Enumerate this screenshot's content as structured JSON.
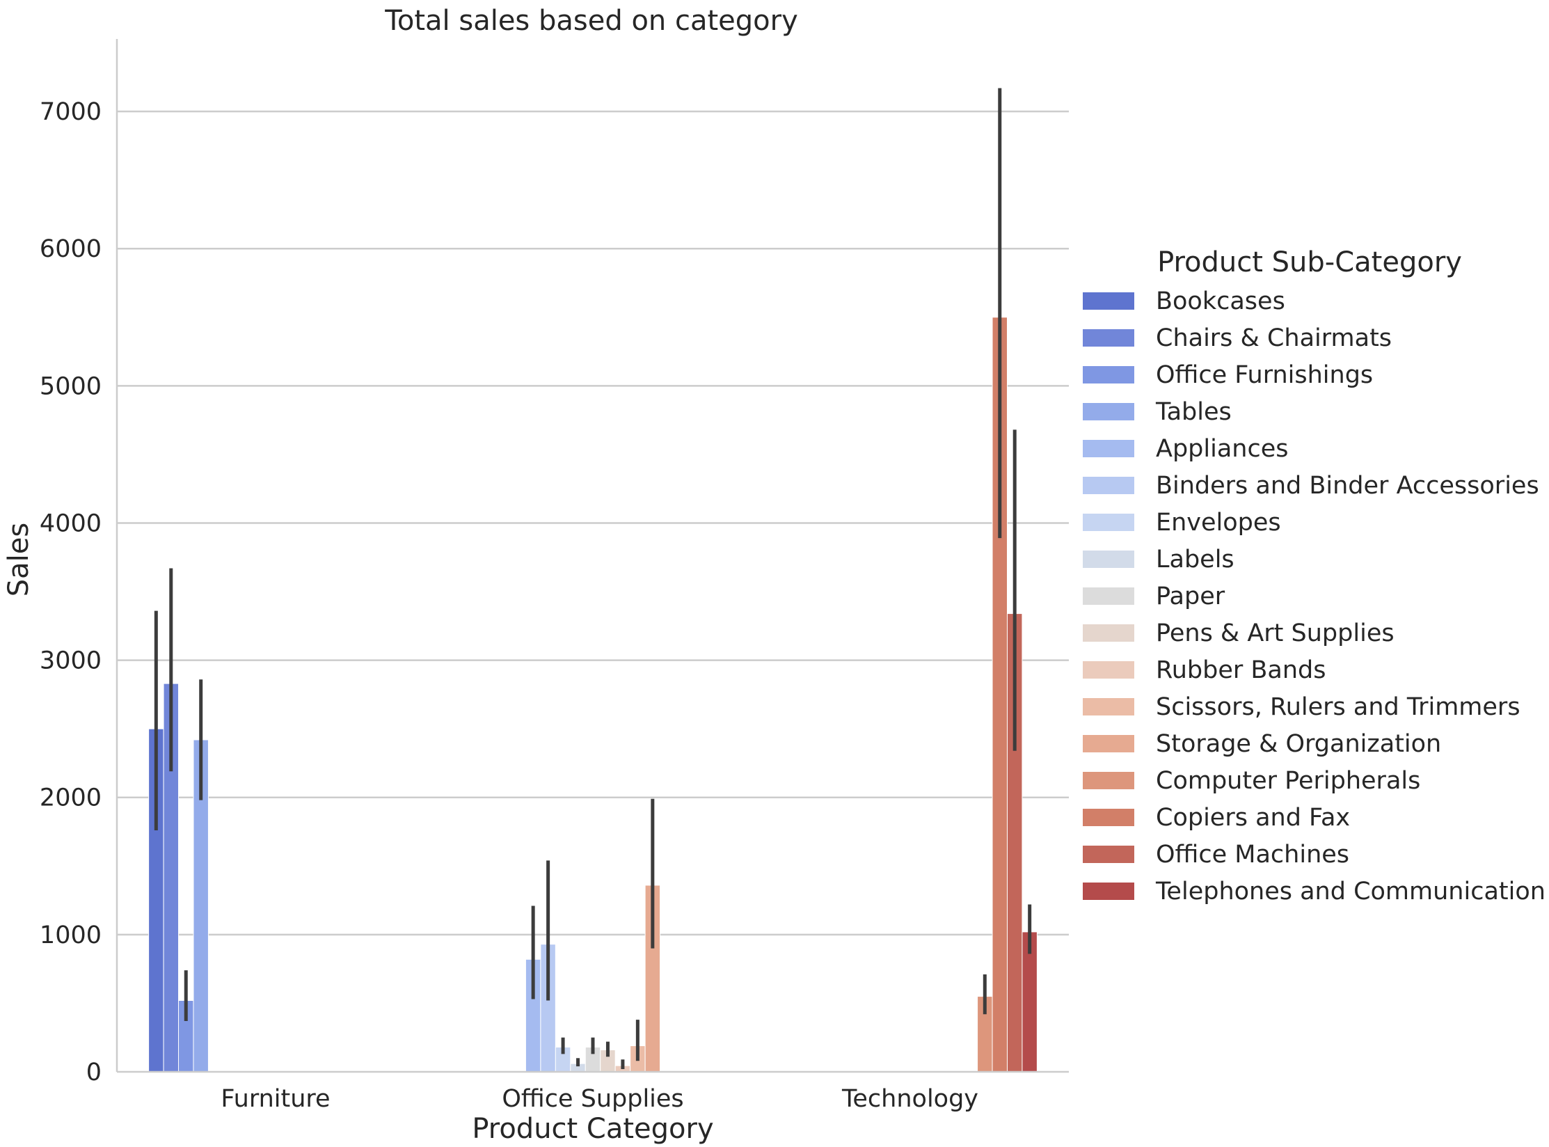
{
  "chart_data": {
    "type": "bar",
    "title": "Total sales based on category",
    "xlabel": "Product Category",
    "ylabel": "Sales",
    "ylim": [
      0,
      7500
    ],
    "yticks": [
      0,
      1000,
      2000,
      3000,
      4000,
      5000,
      6000,
      7000
    ],
    "grid": "horizontal",
    "legend_title": "Product Sub-Category",
    "legend_position": "right",
    "categories": [
      "Furniture",
      "Office Supplies",
      "Technology"
    ],
    "series": [
      {
        "name": "Bookcases",
        "color": "#5e74cf",
        "values": [
          2500,
          null,
          null
        ],
        "ci": [
          [
            1760,
            3360
          ],
          null,
          null
        ]
      },
      {
        "name": "Chairs & Chairmats",
        "color": "#7186d9",
        "values": [
          2830,
          null,
          null
        ],
        "ci": [
          [
            2190,
            3670
          ],
          null,
          null
        ]
      },
      {
        "name": "Office Furnishings",
        "color": "#7f97e3",
        "values": [
          520,
          null,
          null
        ],
        "ci": [
          [
            370,
            740
          ],
          null,
          null
        ]
      },
      {
        "name": "Tables",
        "color": "#93abea",
        "values": [
          2420,
          null,
          null
        ],
        "ci": [
          [
            1980,
            2860
          ],
          null,
          null
        ]
      },
      {
        "name": "Appliances",
        "color": "#a5bbf0",
        "values": [
          null,
          820,
          null
        ],
        "ci": [
          null,
          [
            530,
            1210
          ],
          null
        ]
      },
      {
        "name": "Binders and Binder Accessories",
        "color": "#b7c9f2",
        "values": [
          null,
          930,
          null
        ],
        "ci": [
          null,
          [
            520,
            1540
          ],
          null
        ]
      },
      {
        "name": "Envelopes",
        "color": "#c6d5f2",
        "values": [
          null,
          180,
          null
        ],
        "ci": [
          null,
          [
            130,
            250
          ],
          null
        ]
      },
      {
        "name": "Labels",
        "color": "#d2dbe9",
        "values": [
          null,
          60,
          null
        ],
        "ci": [
          null,
          [
            40,
            100
          ],
          null
        ]
      },
      {
        "name": "Paper",
        "color": "#dcdcdc",
        "values": [
          null,
          180,
          null
        ],
        "ci": [
          null,
          [
            130,
            250
          ],
          null
        ]
      },
      {
        "name": "Pens & Art Supplies",
        "color": "#e5d6cd",
        "values": [
          null,
          160,
          null
        ],
        "ci": [
          null,
          [
            110,
            220
          ],
          null
        ]
      },
      {
        "name": "Rubber Bands",
        "color": "#ebcbbc",
        "values": [
          null,
          45,
          null
        ],
        "ci": [
          null,
          [
            20,
            90
          ],
          null
        ]
      },
      {
        "name": "Scissors, Rulers and Trimmers",
        "color": "#ebbca6",
        "values": [
          null,
          190,
          null
        ],
        "ci": [
          null,
          [
            80,
            380
          ],
          null
        ]
      },
      {
        "name": "Storage & Organization",
        "color": "#e6aa91",
        "values": [
          null,
          1360,
          null
        ],
        "ci": [
          null,
          [
            900,
            1990
          ],
          null
        ]
      },
      {
        "name": "Computer Peripherals",
        "color": "#dd967c",
        "values": [
          null,
          null,
          550
        ],
        "ci": [
          null,
          null,
          [
            420,
            710
          ]
        ]
      },
      {
        "name": "Copiers and Fax",
        "color": "#d27f68",
        "values": [
          null,
          null,
          5500
        ],
        "ci": [
          null,
          null,
          [
            3890,
            7170
          ]
        ]
      },
      {
        "name": "Office Machines",
        "color": "#c2665a",
        "values": [
          null,
          null,
          3340
        ],
        "ci": [
          null,
          null,
          [
            2340,
            4680
          ]
        ]
      },
      {
        "name": "Telephones and Communication",
        "color": "#b44b4b",
        "values": [
          null,
          null,
          1020
        ],
        "ci": [
          null,
          null,
          [
            860,
            1220
          ]
        ]
      }
    ]
  }
}
